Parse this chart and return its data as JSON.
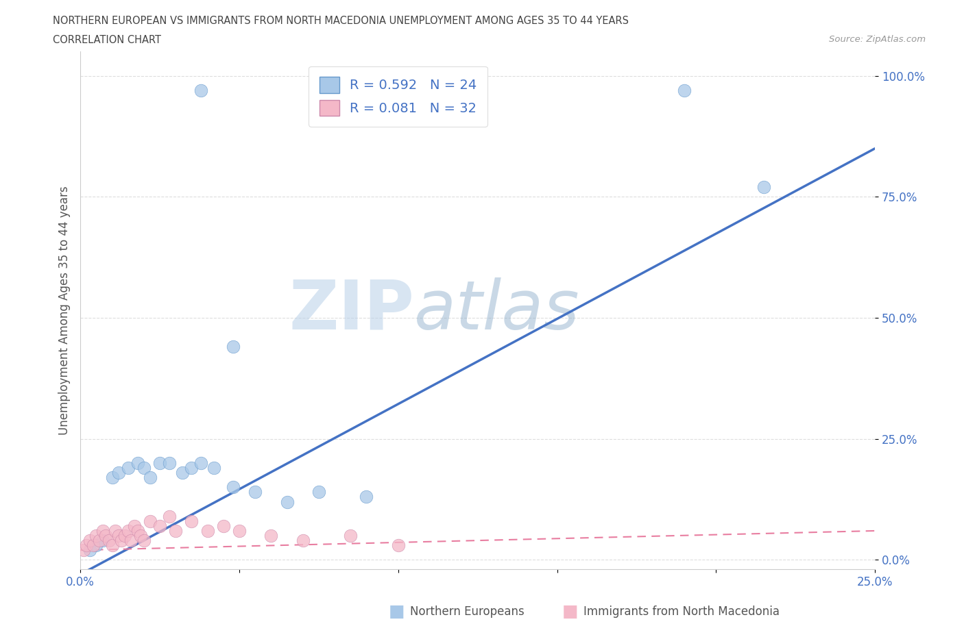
{
  "title_line1": "NORTHERN EUROPEAN VS IMMIGRANTS FROM NORTH MACEDONIA UNEMPLOYMENT AMONG AGES 35 TO 44 YEARS",
  "title_line2": "CORRELATION CHART",
  "source_text": "Source: ZipAtlas.com",
  "ylabel": "Unemployment Among Ages 35 to 44 years",
  "xlim": [
    0.0,
    0.25
  ],
  "ylim": [
    -0.02,
    1.05
  ],
  "yticks": [
    0.0,
    0.25,
    0.5,
    0.75,
    1.0
  ],
  "ytick_labels": [
    "0.0%",
    "25.0%",
    "50.0%",
    "75.0%",
    "100.0%"
  ],
  "xticks": [
    0.0,
    0.05,
    0.1,
    0.15,
    0.2,
    0.25
  ],
  "xtick_labels": [
    "0.0%",
    "",
    "",
    "",
    "",
    "25.0%"
  ],
  "northern_europeans_x": [
    0.003,
    0.005,
    0.007,
    0.01,
    0.012,
    0.015,
    0.018,
    0.02,
    0.022,
    0.025,
    0.028,
    0.032,
    0.035,
    0.038,
    0.042,
    0.048,
    0.055,
    0.065,
    0.075,
    0.09,
    0.038,
    0.048,
    0.19,
    0.215
  ],
  "northern_europeans_y": [
    0.02,
    0.03,
    0.04,
    0.17,
    0.18,
    0.19,
    0.2,
    0.19,
    0.17,
    0.2,
    0.2,
    0.18,
    0.19,
    0.2,
    0.19,
    0.15,
    0.14,
    0.12,
    0.14,
    0.13,
    0.97,
    0.44,
    0.97,
    0.77
  ],
  "north_macedonia_x": [
    0.001,
    0.002,
    0.003,
    0.004,
    0.005,
    0.006,
    0.007,
    0.008,
    0.009,
    0.01,
    0.011,
    0.012,
    0.013,
    0.014,
    0.015,
    0.016,
    0.017,
    0.018,
    0.019,
    0.02,
    0.022,
    0.025,
    0.028,
    0.03,
    0.035,
    0.04,
    0.045,
    0.05,
    0.06,
    0.07,
    0.085,
    0.1
  ],
  "north_macedonia_y": [
    0.02,
    0.03,
    0.04,
    0.03,
    0.05,
    0.04,
    0.06,
    0.05,
    0.04,
    0.03,
    0.06,
    0.05,
    0.04,
    0.05,
    0.06,
    0.04,
    0.07,
    0.06,
    0.05,
    0.04,
    0.08,
    0.07,
    0.09,
    0.06,
    0.08,
    0.06,
    0.07,
    0.06,
    0.05,
    0.04,
    0.05,
    0.03
  ],
  "ne_R": 0.592,
  "ne_N": 24,
  "nm_R": 0.081,
  "nm_N": 32,
  "ne_color": "#a8c8e8",
  "nm_color": "#f4b8c8",
  "ne_line_color": "#4472C4",
  "nm_line_color": "#E87DA0",
  "ne_line_x0": 0.0,
  "ne_line_y0": -0.03,
  "ne_line_x1": 0.25,
  "ne_line_y1": 0.85,
  "nm_line_x0": 0.0,
  "nm_line_y0": 0.02,
  "nm_line_x1": 0.25,
  "nm_line_y1": 0.06,
  "watermark_zip": "ZIP",
  "watermark_atlas": "atlas",
  "background_color": "#ffffff",
  "grid_color": "#dddddd",
  "title_color": "#444444",
  "label_color": "#555555",
  "legend_text_color": "#4472C4",
  "tick_color": "#4472C4",
  "bottom_legend_color": "#555555"
}
